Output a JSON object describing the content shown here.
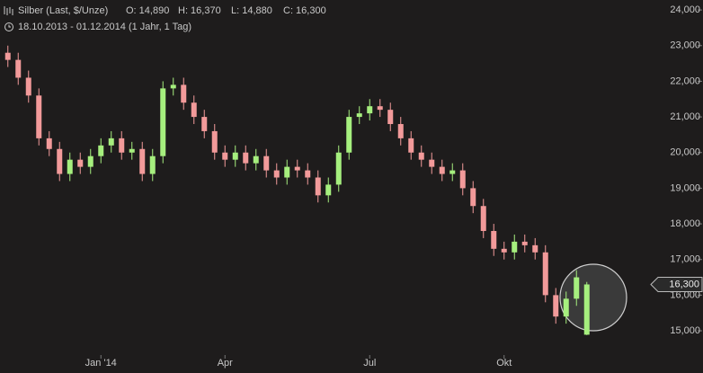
{
  "chart_data": {
    "type": "candlestick",
    "title": "Silber (Last, $/Unze)",
    "summary": [
      "O: 14,890",
      "H: 16,370",
      "L: 14,880",
      "C: 16,300"
    ],
    "subtitle": "18.10.2013 - 01.12.2014 (1 Jahr, 1 Tag)",
    "categories": [
      null,
      null,
      null,
      null,
      null,
      null,
      null,
      null,
      null,
      "Jan '14",
      null,
      null,
      null,
      null,
      null,
      null,
      null,
      null,
      null,
      null,
      null,
      "Apr",
      null,
      null,
      null,
      null,
      null,
      null,
      null,
      null,
      null,
      null,
      null,
      null,
      null,
      "Jul",
      null,
      null,
      null,
      null,
      null,
      null,
      null,
      null,
      null,
      null,
      null,
      null,
      "Okt",
      null,
      null,
      null,
      null,
      null,
      null,
      null,
      null
    ],
    "open": [
      22.8,
      22.6,
      22.1,
      21.6,
      20.4,
      20.1,
      19.4,
      19.8,
      19.6,
      19.9,
      20.2,
      20.4,
      20.0,
      20.1,
      19.4,
      19.9,
      21.8,
      21.9,
      21.4,
      21.0,
      20.6,
      20.0,
      19.8,
      20.0,
      19.7,
      19.9,
      19.5,
      19.3,
      19.6,
      19.5,
      19.3,
      18.8,
      19.1,
      20.0,
      21.0,
      21.1,
      21.3,
      21.2,
      20.8,
      20.4,
      20.0,
      19.8,
      19.6,
      19.4,
      19.5,
      19.0,
      18.5,
      17.8,
      17.3,
      17.2,
      17.5,
      17.4,
      17.2,
      16.0,
      15.4,
      15.9,
      14.89
    ],
    "high": [
      23.0,
      22.8,
      22.3,
      21.8,
      20.6,
      20.3,
      20.0,
      20.0,
      20.1,
      20.4,
      20.6,
      20.6,
      20.3,
      20.3,
      20.1,
      22.0,
      22.1,
      22.1,
      21.6,
      21.2,
      20.8,
      20.2,
      20.2,
      20.2,
      20.1,
      20.1,
      19.7,
      19.8,
      19.8,
      19.7,
      19.5,
      19.3,
      20.2,
      21.2,
      21.3,
      21.5,
      21.5,
      21.4,
      21.0,
      20.6,
      20.2,
      20.0,
      19.8,
      19.7,
      19.7,
      19.2,
      18.7,
      18.0,
      17.5,
      17.7,
      17.7,
      17.6,
      17.4,
      16.2,
      16.1,
      16.7,
      16.37
    ],
    "low": [
      22.4,
      21.9,
      21.4,
      20.2,
      19.9,
      19.2,
      19.2,
      19.4,
      19.4,
      19.7,
      20.0,
      19.8,
      19.8,
      19.2,
      19.2,
      19.7,
      21.6,
      21.2,
      20.8,
      20.4,
      19.8,
      19.6,
      19.6,
      19.5,
      19.5,
      19.3,
      19.1,
      19.1,
      19.3,
      19.1,
      18.6,
      18.6,
      18.9,
      19.8,
      20.8,
      20.9,
      21.0,
      20.6,
      20.2,
      19.8,
      19.6,
      19.4,
      19.2,
      19.2,
      18.8,
      18.3,
      17.6,
      17.1,
      17.0,
      17.0,
      17.2,
      17.0,
      15.8,
      15.2,
      15.2,
      15.7,
      14.88
    ],
    "close": [
      22.6,
      22.1,
      21.6,
      20.4,
      20.1,
      19.4,
      19.8,
      19.6,
      19.9,
      20.2,
      20.4,
      20.0,
      20.1,
      19.4,
      19.9,
      21.8,
      21.9,
      21.4,
      21.0,
      20.6,
      20.0,
      19.8,
      20.0,
      19.7,
      19.9,
      19.5,
      19.3,
      19.6,
      19.5,
      19.3,
      18.8,
      19.1,
      20.0,
      21.0,
      21.1,
      21.3,
      21.2,
      20.8,
      20.4,
      20.0,
      19.8,
      19.6,
      19.4,
      19.5,
      19.0,
      18.5,
      17.8,
      17.3,
      17.2,
      17.5,
      17.4,
      17.2,
      16.0,
      15.4,
      15.9,
      16.5,
      16.3
    ],
    "up_color": "#a6ef7e",
    "down_color": "#f29a9a",
    "ylim": [
      14.32,
      24.28
    ],
    "yticks": [
      {
        "value": 15,
        "label": "15,000"
      },
      {
        "value": 16,
        "label": "16,000"
      },
      {
        "value": 17,
        "label": "17,000"
      },
      {
        "value": 18,
        "label": "18,000"
      },
      {
        "value": 19,
        "label": "19,000"
      },
      {
        "value": 20,
        "label": "20,000"
      },
      {
        "value": 21,
        "label": "21,000"
      },
      {
        "value": 22,
        "label": "22,000"
      },
      {
        "value": 23,
        "label": "23,000"
      },
      {
        "value": 24,
        "label": "24,000"
      }
    ],
    "last_value": {
      "value": 16.3,
      "label": "16,300"
    },
    "grid": false
  }
}
